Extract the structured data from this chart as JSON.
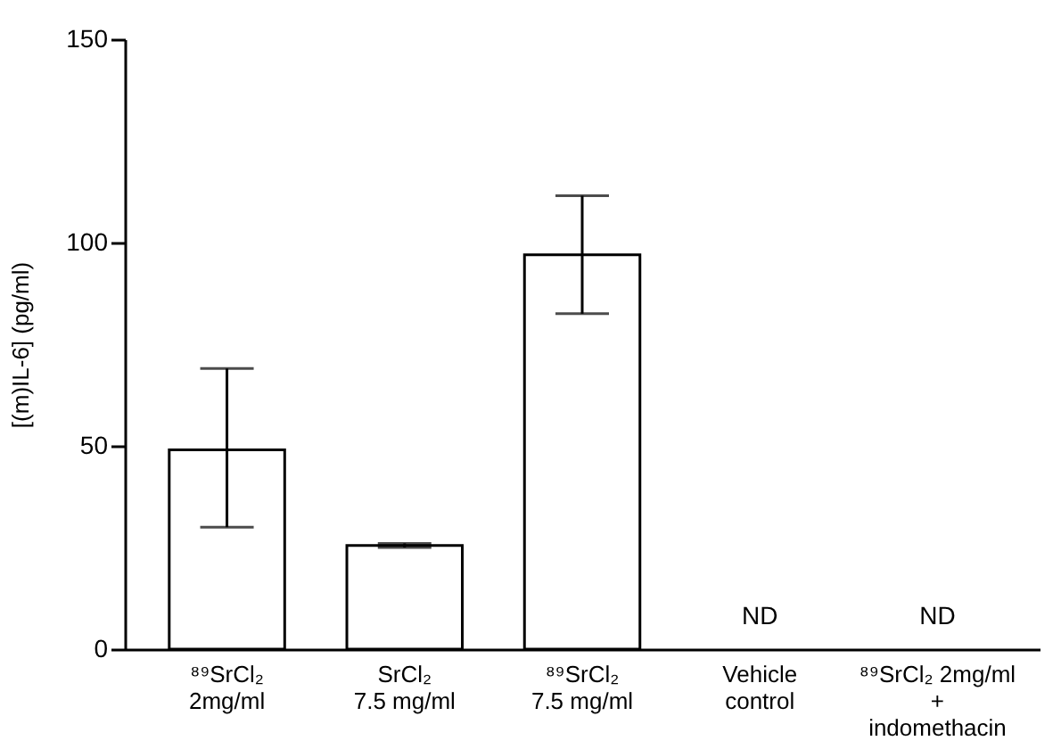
{
  "chart_data": {
    "type": "bar",
    "ylabel": "[(m)IL-6] (pg/ml)",
    "categories": [
      "⁸⁹SrCl₂\n2mg/ml",
      "SrCl₂\n7.5 mg/ml",
      "⁸⁹SrCl₂\n7.5 mg/ml",
      "Vehicle\ncontrol",
      "⁸⁹SrCl₂ 2mg/ml\n+\nindomethacin"
    ],
    "values": [
      49,
      25.5,
      97,
      null,
      null
    ],
    "errors": [
      [
        30,
        69
      ],
      [
        25,
        26
      ],
      [
        82.5,
        111.5
      ],
      null,
      null
    ],
    "value_labels": [
      null,
      null,
      null,
      "ND",
      "ND"
    ],
    "color": "#ffffff",
    "ylim": [
      0,
      150
    ],
    "yticks": [
      0,
      50,
      100,
      150
    ],
    "grid": false
  }
}
